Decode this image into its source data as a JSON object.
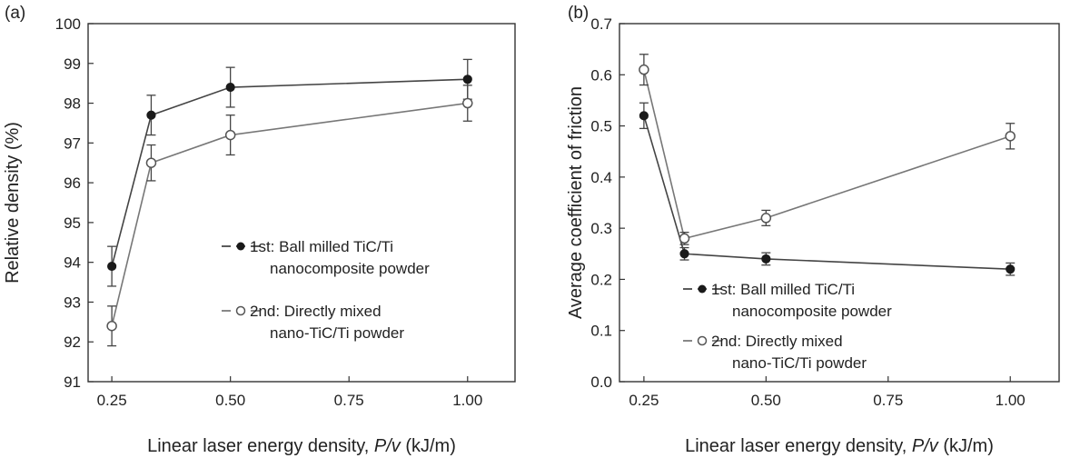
{
  "figure": {
    "panels": [
      {
        "label": "(a)"
      },
      {
        "label": "(b)"
      }
    ]
  },
  "chart_data": [
    {
      "type": "line",
      "panel_label": "(a)",
      "xlabel_prefix": "Linear laser energy density, ",
      "xlabel_italic": "P/v",
      "xlabel_suffix": " (kJ/m)",
      "ylabel": "Relative density (%)",
      "xlim": [
        0.2,
        1.1
      ],
      "ylim": [
        91,
        100
      ],
      "xticks": [
        0.25,
        0.5,
        0.75,
        1.0
      ],
      "xtick_labels": [
        "0.25",
        "0.50",
        "0.75",
        "1.00"
      ],
      "yticks": [
        91,
        92,
        93,
        94,
        95,
        96,
        97,
        98,
        99,
        100
      ],
      "ytick_labels": [
        "91",
        "92",
        "93",
        "94",
        "95",
        "96",
        "97",
        "98",
        "99",
        "100"
      ],
      "legend_position": "center-right",
      "series": [
        {
          "name_line1": "1st: Ball milled TiC/Ti",
          "name_line2": "nanocomposite powder",
          "marker": "filled",
          "x": [
            0.25,
            0.333,
            0.5,
            1.0
          ],
          "y": [
            93.9,
            97.7,
            98.4,
            98.6
          ],
          "err": [
            0.5,
            0.5,
            0.5,
            0.5
          ]
        },
        {
          "name_line1": "2nd: Directly mixed",
          "name_line2": "nano-TiC/Ti powder",
          "marker": "open",
          "x": [
            0.25,
            0.333,
            0.5,
            1.0
          ],
          "y": [
            92.4,
            96.5,
            97.2,
            98.0
          ],
          "err": [
            0.5,
            0.45,
            0.5,
            0.45
          ]
        }
      ]
    },
    {
      "type": "line",
      "panel_label": "(b)",
      "xlabel_prefix": "Linear laser energy density, ",
      "xlabel_italic": "P/v",
      "xlabel_suffix": " (kJ/m)",
      "ylabel": "Average coefficient of friction",
      "xlim": [
        0.2,
        1.1
      ],
      "ylim": [
        0.0,
        0.7
      ],
      "xticks": [
        0.25,
        0.5,
        0.75,
        1.0
      ],
      "xtick_labels": [
        "0.25",
        "0.50",
        "0.75",
        "1.00"
      ],
      "yticks": [
        0.0,
        0.1,
        0.2,
        0.3,
        0.4,
        0.5,
        0.6,
        0.7
      ],
      "ytick_labels": [
        "0.0",
        "0.1",
        "0.2",
        "0.3",
        "0.4",
        "0.5",
        "0.6",
        "0.7"
      ],
      "legend_position": "bottom-left",
      "series": [
        {
          "name_line1": "1st: Ball milled TiC/Ti",
          "name_line2": "nanocomposite powder",
          "marker": "filled",
          "x": [
            0.25,
            0.333,
            0.5,
            1.0
          ],
          "y": [
            0.52,
            0.25,
            0.24,
            0.22
          ],
          "err": [
            0.025,
            0.012,
            0.012,
            0.012
          ]
        },
        {
          "name_line1": "2nd: Directly mixed",
          "name_line2": "nano-TiC/Ti powder",
          "marker": "open",
          "x": [
            0.25,
            0.333,
            0.5,
            1.0
          ],
          "y": [
            0.61,
            0.28,
            0.32,
            0.48
          ],
          "err": [
            0.03,
            0.012,
            0.015,
            0.025
          ]
        }
      ]
    }
  ]
}
